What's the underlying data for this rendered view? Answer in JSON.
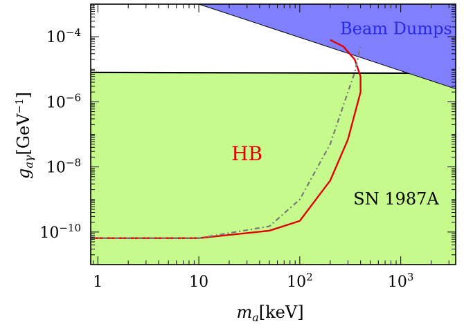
{
  "chart_data": {
    "type": "area",
    "x_scale": "log",
    "y_scale": "log",
    "xlim": [
      0.85,
      3500
    ],
    "ylim": [
      1e-11,
      0.001
    ],
    "xlabel": "m_a[keV]",
    "ylabel": "g_aγ[GeV^-1]",
    "x_ticks": [
      {
        "value": 1,
        "label": "1"
      },
      {
        "value": 10,
        "label": "10"
      },
      {
        "value": 100,
        "label": "10^2"
      },
      {
        "value": 1000,
        "label": "10^3"
      }
    ],
    "y_ticks": [
      {
        "value": 1e-10,
        "label": "10^-10"
      },
      {
        "value": 1e-08,
        "label": "10^-8"
      },
      {
        "value": 1e-06,
        "label": "10^-6"
      },
      {
        "value": 0.0001,
        "label": "10^-4"
      }
    ],
    "grid": false,
    "series": [
      {
        "name": "HB",
        "kind": "excluded-region",
        "color": "#c6fa8c",
        "upper_bound_x": [
          0.85,
          3500
        ],
        "upper_bound_y": [
          8e-06,
          7.5e-06
        ]
      },
      {
        "name": "Beam Dumps",
        "kind": "excluded-region",
        "color": "#8080ff",
        "lower_bound_x": [
          10,
          3500
        ],
        "lower_bound_y": [
          0.001,
          2.5e-06
        ]
      },
      {
        "name": "SN 1987A",
        "kind": "line",
        "color": "#e00000",
        "style": "solid",
        "x": [
          0.85,
          10,
          50,
          100,
          200,
          300,
          400,
          400,
          350,
          270,
          200
        ],
        "y": [
          6.5e-11,
          6.5e-11,
          1.1e-10,
          2.2e-10,
          3.8e-09,
          7e-08,
          2e-06,
          6e-06,
          2e-05,
          5e-05,
          8e-05
        ]
      },
      {
        "name": "",
        "kind": "line",
        "color": "#777777",
        "style": "dash-dot",
        "x": [
          0.85,
          10,
          50,
          100,
          200,
          300,
          350,
          400
        ],
        "y": [
          6.5e-11,
          6.5e-11,
          1.5e-10,
          1e-09,
          5e-08,
          2e-06,
          8e-06,
          5e-05
        ]
      }
    ],
    "annotations": [
      {
        "text": "Beam Dumps",
        "x": 900,
        "y": 0.00012,
        "color": "#2a2ae0"
      },
      {
        "text": "HB",
        "x": 30,
        "y": 1.6e-08,
        "color": "#e00000"
      },
      {
        "text": "SN 1987A",
        "x": 900,
        "y": 7e-10,
        "color": "#000000"
      }
    ]
  }
}
